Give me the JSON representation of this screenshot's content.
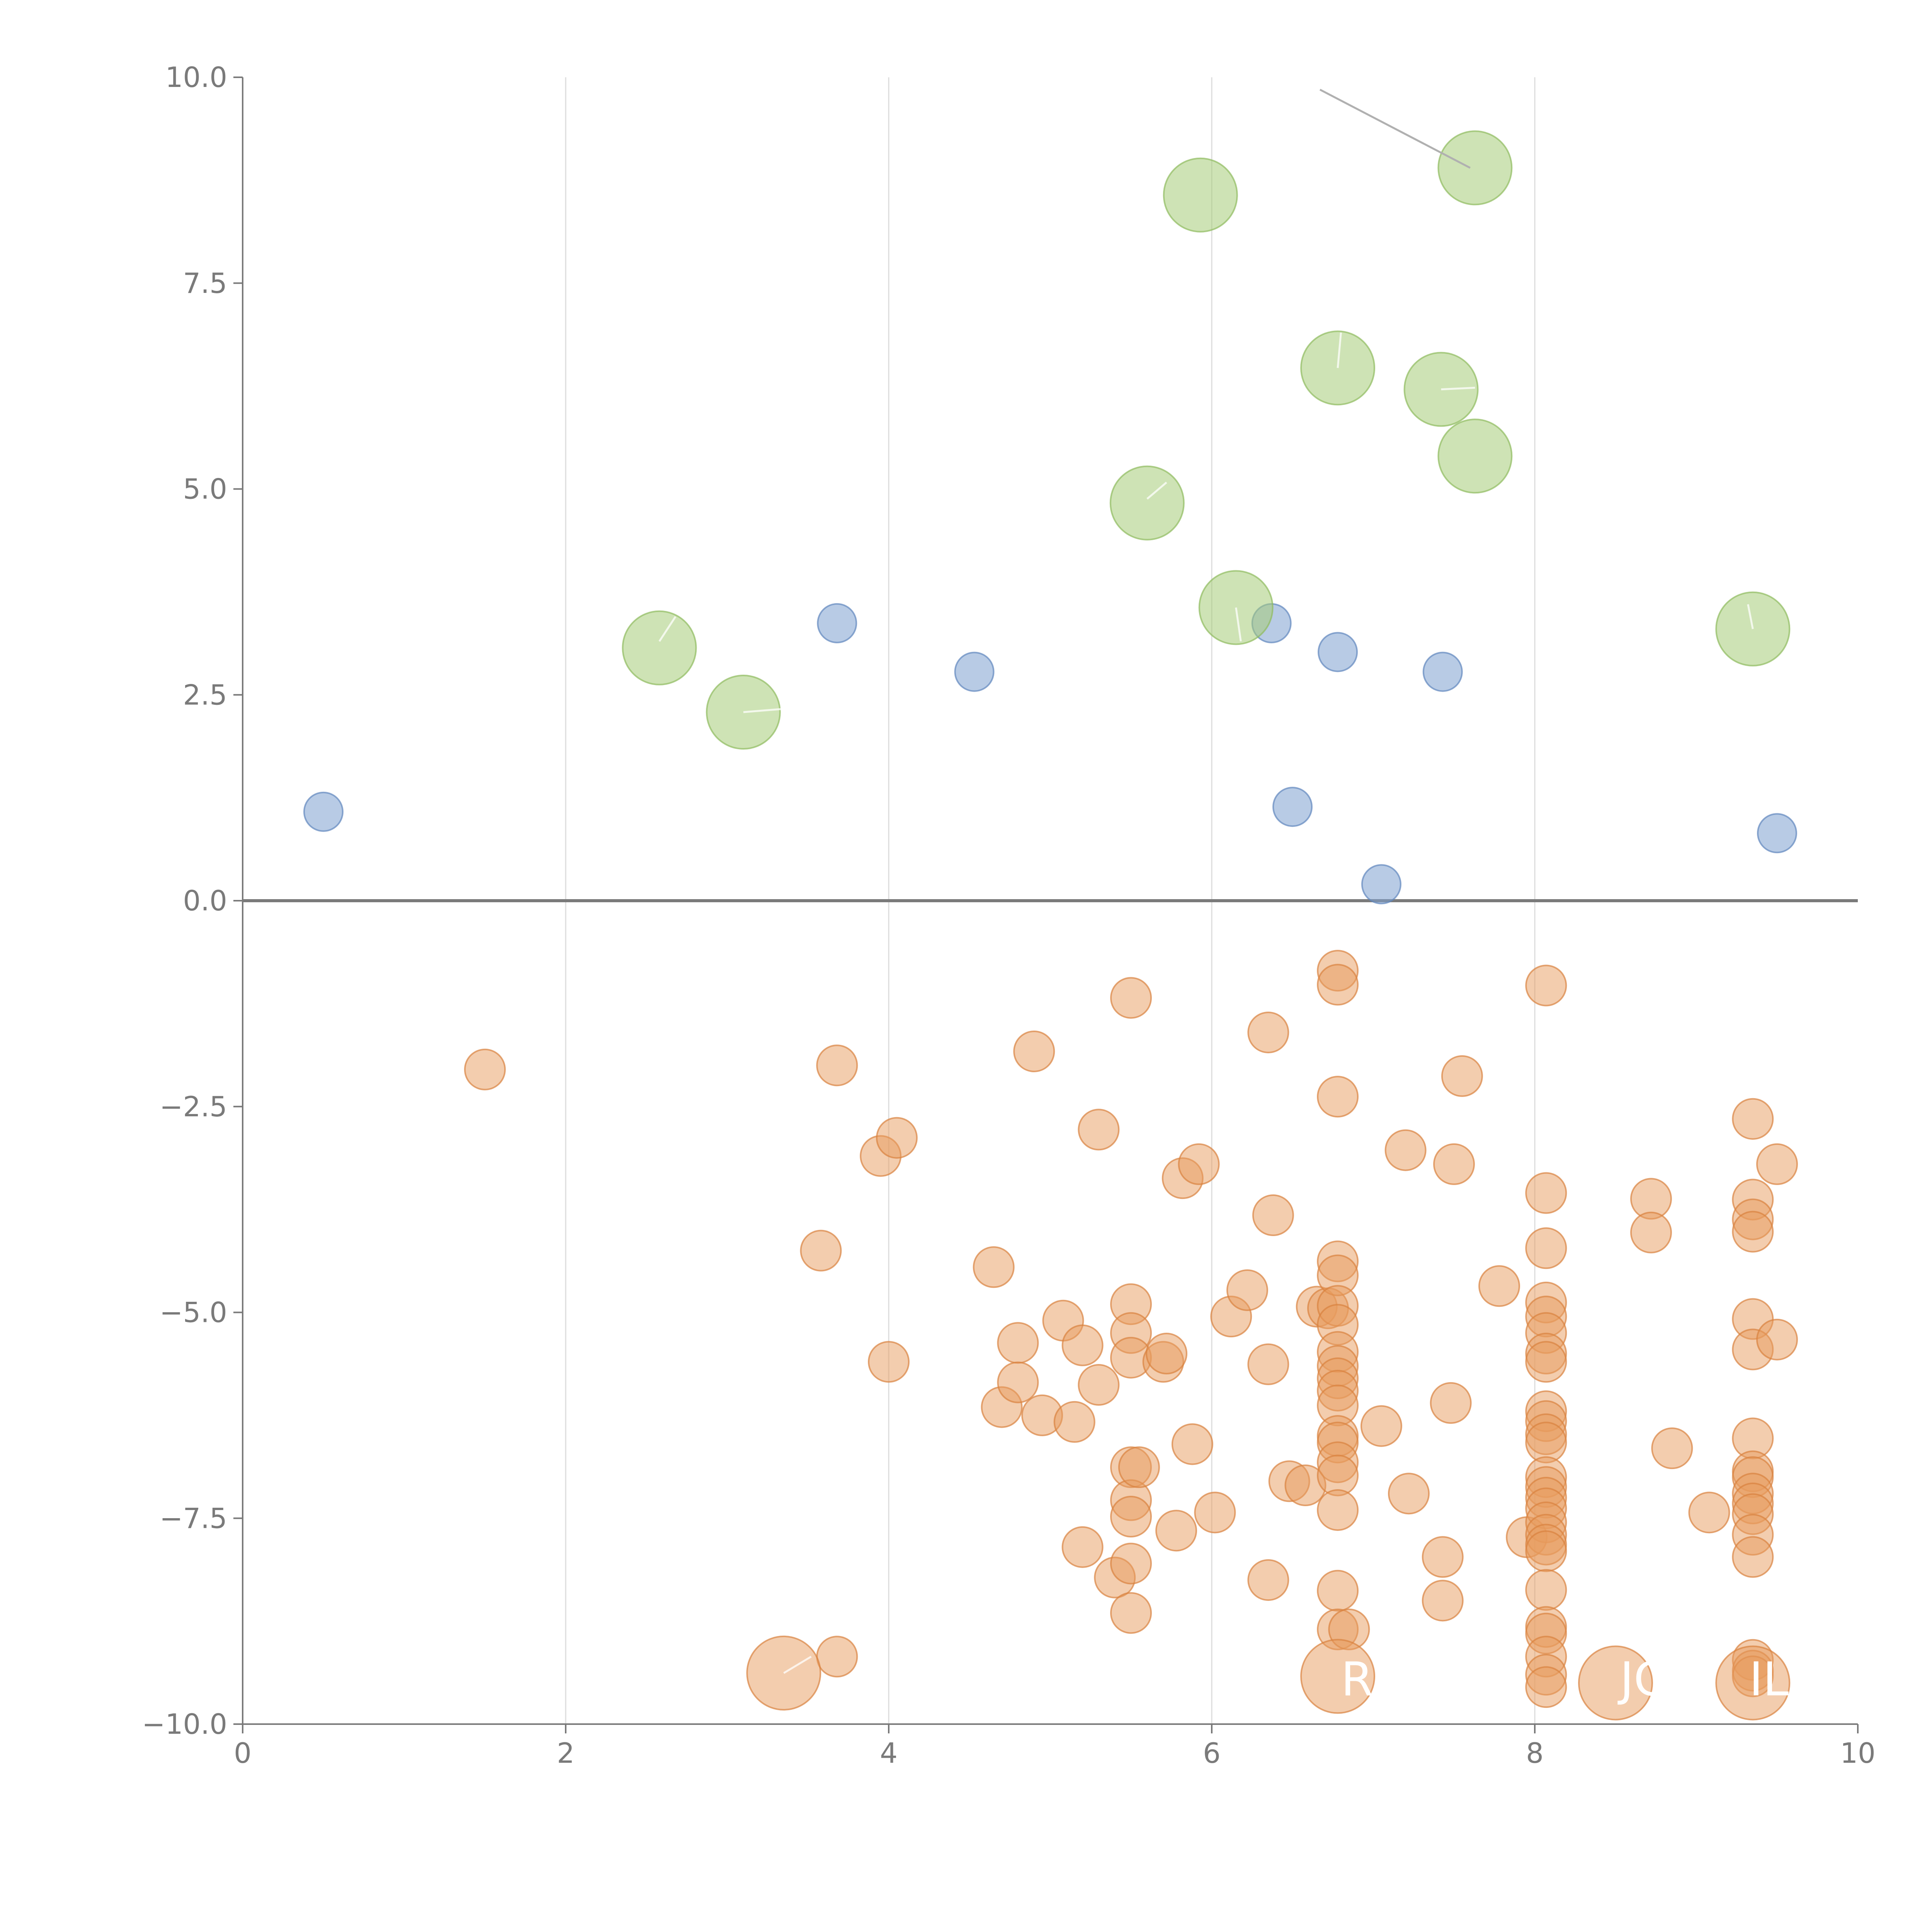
{
  "colors": {
    "blue": "#7da0d0",
    "green": "#a6cc79",
    "orange": "#e89b5d",
    "axis": "#7a7a7a",
    "grid": "#dcdcdc"
  },
  "chart_data": {
    "type": "scatter",
    "title": "",
    "xlabel": "",
    "ylabel": "",
    "xlim": [
      0,
      10
    ],
    "ylim": [
      -10,
      10
    ],
    "x_ticks": [
      "0",
      "2",
      "4",
      "6",
      "8",
      "10"
    ],
    "y_ticks": [
      "−10.0",
      "−7.5",
      "−5.0",
      "−2.5",
      "0.0",
      "2.5",
      "5.0",
      "7.5",
      "10.0"
    ],
    "grid": "vertical",
    "legend": "none",
    "series": [
      {
        "color": "blue",
        "size": "small",
        "points": [
          [
            0.5,
            1.08
          ],
          [
            3.68,
            3.37
          ],
          [
            4.53,
            2.78
          ],
          [
            6.37,
            3.37
          ],
          [
            6.5,
            1.14
          ],
          [
            6.78,
            3.02
          ],
          [
            7.05,
            0.2
          ],
          [
            7.43,
            2.78
          ],
          [
            9.5,
            0.82
          ]
        ]
      },
      {
        "color": "green",
        "size": "large",
        "points": [
          [
            2.58,
            3.07
          ],
          [
            3.1,
            2.29
          ],
          [
            5.6,
            4.83
          ],
          [
            5.93,
            8.57
          ],
          [
            6.15,
            3.56
          ],
          [
            6.78,
            6.47
          ],
          [
            7.42,
            6.21
          ],
          [
            7.63,
            5.4
          ],
          [
            7.63,
            8.9
          ],
          [
            9.35,
            3.3
          ]
        ]
      },
      {
        "color": "orange",
        "size": "medium",
        "points": [
          [
            1.5,
            -2.05
          ],
          [
            3.58,
            -4.25
          ],
          [
            3.68,
            -9.18
          ],
          [
            3.68,
            -2.0
          ],
          [
            3.95,
            -3.1
          ],
          [
            4.05,
            -2.88
          ],
          [
            4.0,
            -5.6
          ],
          [
            4.65,
            -4.45
          ],
          [
            4.7,
            -6.15
          ],
          [
            4.8,
            -5.37
          ],
          [
            4.8,
            -5.85
          ],
          [
            4.9,
            -1.83
          ],
          [
            4.95,
            -6.25
          ],
          [
            5.08,
            -5.1
          ],
          [
            5.15,
            -6.33
          ],
          [
            5.2,
            -5.4
          ],
          [
            5.2,
            -7.85
          ],
          [
            5.3,
            -2.78
          ],
          [
            5.3,
            -5.88
          ],
          [
            5.4,
            -8.22
          ],
          [
            5.5,
            -1.18
          ],
          [
            5.5,
            -4.9
          ],
          [
            5.5,
            -5.25
          ],
          [
            5.5,
            -5.55
          ],
          [
            5.5,
            -6.88
          ],
          [
            5.5,
            -7.28
          ],
          [
            5.5,
            -7.48
          ],
          [
            5.5,
            -8.05
          ],
          [
            5.5,
            -8.65
          ],
          [
            5.55,
            -6.88
          ],
          [
            5.7,
            -5.6
          ],
          [
            5.72,
            -5.5
          ],
          [
            5.78,
            -7.65
          ],
          [
            5.82,
            -3.37
          ],
          [
            5.88,
            -6.6
          ],
          [
            5.92,
            -3.2
          ],
          [
            6.02,
            -7.43
          ],
          [
            6.12,
            -5.05
          ],
          [
            6.22,
            -4.73
          ],
          [
            6.35,
            -1.6
          ],
          [
            6.35,
            -5.63
          ],
          [
            6.35,
            -8.25
          ],
          [
            6.38,
            -3.82
          ],
          [
            6.48,
            -7.05
          ],
          [
            6.58,
            -7.1
          ],
          [
            6.65,
            -4.93
          ],
          [
            6.72,
            -4.95
          ],
          [
            6.78,
            -0.85
          ],
          [
            6.78,
            -1.02
          ],
          [
            6.78,
            -2.38
          ],
          [
            6.78,
            -4.38
          ],
          [
            6.78,
            -4.55
          ],
          [
            6.78,
            -4.92
          ],
          [
            6.78,
            -5.15
          ],
          [
            6.78,
            -5.48
          ],
          [
            6.78,
            -5.65
          ],
          [
            6.78,
            -5.8
          ],
          [
            6.78,
            -5.95
          ],
          [
            6.78,
            -6.13
          ],
          [
            6.78,
            -6.5
          ],
          [
            6.78,
            -6.58
          ],
          [
            6.78,
            -6.82
          ],
          [
            6.78,
            -6.98
          ],
          [
            6.78,
            -7.4
          ],
          [
            6.78,
            -8.38
          ],
          [
            6.78,
            -8.85
          ],
          [
            6.85,
            -8.85
          ],
          [
            7.05,
            -6.38
          ],
          [
            7.2,
            -3.03
          ],
          [
            7.22,
            -7.2
          ],
          [
            7.43,
            -7.97
          ],
          [
            7.43,
            -8.5
          ],
          [
            7.48,
            -6.1
          ],
          [
            7.5,
            -3.2
          ],
          [
            7.55,
            -2.13
          ],
          [
            7.78,
            -4.68
          ],
          [
            7.95,
            -7.73
          ],
          [
            8.07,
            -1.03
          ],
          [
            8.07,
            -3.55
          ],
          [
            8.07,
            -4.22
          ],
          [
            8.07,
            -4.88
          ],
          [
            8.07,
            -5.05
          ],
          [
            8.07,
            -5.25
          ],
          [
            8.07,
            -5.5
          ],
          [
            8.07,
            -5.6
          ],
          [
            8.07,
            -6.2
          ],
          [
            8.07,
            -6.32
          ],
          [
            8.07,
            -6.48
          ],
          [
            8.07,
            -6.58
          ],
          [
            8.07,
            -7.0
          ],
          [
            8.07,
            -7.12
          ],
          [
            8.07,
            -7.25
          ],
          [
            8.07,
            -7.38
          ],
          [
            8.07,
            -7.55
          ],
          [
            8.07,
            -7.7
          ],
          [
            8.07,
            -7.82
          ],
          [
            8.07,
            -7.9
          ],
          [
            8.07,
            -8.37
          ],
          [
            8.07,
            -8.82
          ],
          [
            8.07,
            -8.9
          ],
          [
            8.07,
            -9.18
          ],
          [
            8.07,
            -9.4
          ],
          [
            8.07,
            -9.55
          ],
          [
            8.72,
            -3.62
          ],
          [
            8.72,
            -4.03
          ],
          [
            8.85,
            -6.65
          ],
          [
            9.08,
            -7.43
          ],
          [
            9.35,
            -2.65
          ],
          [
            9.35,
            -3.63
          ],
          [
            9.35,
            -3.87
          ],
          [
            9.35,
            -4.02
          ],
          [
            9.35,
            -5.08
          ],
          [
            9.35,
            -5.45
          ],
          [
            9.35,
            -6.53
          ],
          [
            9.35,
            -6.93
          ],
          [
            9.35,
            -7.0
          ],
          [
            9.35,
            -7.2
          ],
          [
            9.35,
            -7.32
          ],
          [
            9.35,
            -7.45
          ],
          [
            9.35,
            -7.7
          ],
          [
            9.35,
            -7.97
          ],
          [
            9.35,
            -9.22
          ],
          [
            9.35,
            -9.35
          ],
          [
            9.35,
            -9.42
          ],
          [
            9.5,
            -3.2
          ],
          [
            9.5,
            -5.33
          ]
        ]
      },
      {
        "color": "orange",
        "size": "large",
        "points": [
          [
            3.35,
            -9.38
          ],
          [
            6.78,
            -9.42
          ],
          [
            8.5,
            -9.5
          ],
          [
            9.35,
            -9.5
          ]
        ]
      }
    ],
    "annotations": [
      {
        "text": "R",
        "x": 6.9,
        "y": -9.65
      },
      {
        "text": "JC",
        "x": 8.67,
        "y": -9.65
      },
      {
        "text": "IL",
        "x": 9.45,
        "y": -9.65
      }
    ],
    "leader_lines": [
      {
        "x1": 6.67,
        "y1": 9.85,
        "x2": 7.6,
        "y2": 8.9,
        "tone": "dark"
      },
      {
        "x1": 2.58,
        "y1": 3.15,
        "x2": 2.68,
        "y2": 3.45,
        "tone": "light"
      },
      {
        "x1": 3.1,
        "y1": 2.29,
        "x2": 3.35,
        "y2": 2.33,
        "tone": "light"
      },
      {
        "x1": 5.6,
        "y1": 4.88,
        "x2": 5.72,
        "y2": 5.08,
        "tone": "light"
      },
      {
        "x1": 6.15,
        "y1": 3.56,
        "x2": 6.18,
        "y2": 3.15,
        "tone": "light"
      },
      {
        "x1": 6.78,
        "y1": 6.47,
        "x2": 6.8,
        "y2": 6.9,
        "tone": "light"
      },
      {
        "x1": 7.42,
        "y1": 6.21,
        "x2": 7.63,
        "y2": 6.23,
        "tone": "light"
      },
      {
        "x1": 9.35,
        "y1": 3.3,
        "x2": 9.32,
        "y2": 3.6,
        "tone": "light"
      },
      {
        "x1": 3.35,
        "y1": -9.38,
        "x2": 3.52,
        "y2": -9.18,
        "tone": "light"
      }
    ]
  }
}
